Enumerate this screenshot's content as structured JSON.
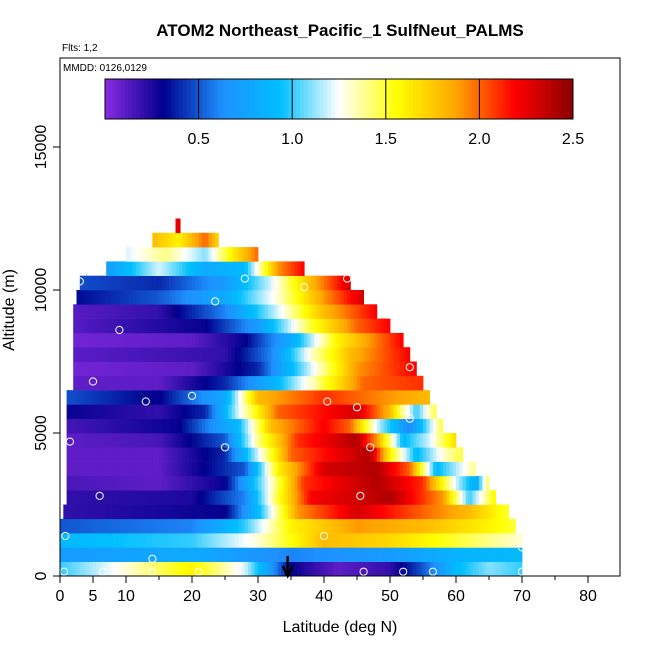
{
  "chart_data": {
    "type": "heatmap",
    "title": "ATOM2 Northeast_Pacific_1 SulfNeut_PALMS",
    "annotations": {
      "flights": "Flts: 1,2",
      "dates": "MMDD: 0126,0129"
    },
    "xlabel": "Latitude (deg N)",
    "ylabel": "Altitude (m)",
    "xlim": [
      0,
      85
    ],
    "ylim": [
      0,
      17500
    ],
    "x_ticks": [
      0,
      5,
      10,
      20,
      30,
      40,
      50,
      60,
      70,
      80
    ],
    "y_ticks": [
      0,
      5000,
      10000,
      15000
    ],
    "colorbar": {
      "range": [
        0,
        2.5
      ],
      "ticks": [
        0.5,
        1.0,
        1.5,
        2.0,
        2.5
      ],
      "tick_labels": [
        "0.5",
        "1.0",
        "1.5",
        "2.0",
        "2.5"
      ],
      "colors": [
        "#8a2be2",
        "#00008b",
        "#1e90ff",
        "#00bfff",
        "#ffffff",
        "#ffff00",
        "#ffa500",
        "#ff0000",
        "#8b0000"
      ]
    },
    "flight_track_arrow_lat": 34.5,
    "layers": [
      {
        "alt": [
          0,
          500
        ],
        "lat": [
          0,
          70
        ],
        "anchors": [
          [
            0,
            1.0
          ],
          [
            10,
            1.3
          ],
          [
            20,
            1.6
          ],
          [
            28,
            1.2
          ],
          [
            35,
            0.3
          ],
          [
            42,
            0.1
          ],
          [
            50,
            0.2
          ],
          [
            55,
            0.5
          ],
          [
            60,
            0.9
          ],
          [
            65,
            1.1
          ],
          [
            70,
            1.0
          ]
        ]
      },
      {
        "alt": [
          500,
          1000
        ],
        "lat": [
          0,
          70
        ],
        "anchors": [
          [
            0,
            0.7
          ],
          [
            20,
            0.8
          ],
          [
            35,
            0.6
          ],
          [
            50,
            0.7
          ],
          [
            60,
            0.85
          ],
          [
            70,
            0.9
          ]
        ]
      },
      {
        "alt": [
          1000,
          1500
        ],
        "lat": [
          0,
          70
        ],
        "anchors": [
          [
            0,
            0.9
          ],
          [
            20,
            1.0
          ],
          [
            30,
            1.3
          ],
          [
            40,
            1.8
          ],
          [
            50,
            1.7
          ],
          [
            60,
            1.5
          ],
          [
            70,
            1.3
          ]
        ]
      },
      {
        "alt": [
          1500,
          2000
        ],
        "lat": [
          0,
          69
        ],
        "anchors": [
          [
            0,
            0.5
          ],
          [
            20,
            0.6
          ],
          [
            28,
            1.0
          ],
          [
            35,
            1.6
          ],
          [
            45,
            1.9
          ],
          [
            55,
            1.8
          ],
          [
            65,
            1.6
          ],
          [
            69,
            1.5
          ]
        ]
      },
      {
        "alt": [
          2000,
          2500
        ],
        "lat": [
          0.5,
          68
        ],
        "anchors": [
          [
            0,
            0.2
          ],
          [
            25,
            0.3
          ],
          [
            30,
            0.9
          ],
          [
            36,
            1.9
          ],
          [
            45,
            2.3
          ],
          [
            55,
            2.0
          ],
          [
            62,
            1.8
          ],
          [
            68,
            1.5
          ]
        ]
      },
      {
        "alt": [
          2500,
          3000
        ],
        "lat": [
          1,
          66
        ],
        "anchors": [
          [
            0,
            0.2
          ],
          [
            20,
            0.25
          ],
          [
            28,
            0.6
          ],
          [
            33,
            1.5
          ],
          [
            38,
            2.2
          ],
          [
            50,
            2.4
          ],
          [
            58,
            1.9
          ],
          [
            62,
            1.0
          ],
          [
            66,
            1.6
          ]
        ]
      },
      {
        "alt": [
          3000,
          3500
        ],
        "lat": [
          1,
          65
        ],
        "anchors": [
          [
            0,
            0.15
          ],
          [
            15,
            0.1
          ],
          [
            25,
            0.3
          ],
          [
            32,
            1.3
          ],
          [
            37,
            2.1
          ],
          [
            48,
            2.4
          ],
          [
            55,
            2.1
          ],
          [
            60,
            1.2
          ],
          [
            63,
            0.8
          ],
          [
            65,
            1.5
          ]
        ]
      },
      {
        "alt": [
          3500,
          4000
        ],
        "lat": [
          1,
          63
        ],
        "anchors": [
          [
            0,
            0.1
          ],
          [
            15,
            0.1
          ],
          [
            28,
            0.5
          ],
          [
            33,
            1.6
          ],
          [
            40,
            2.3
          ],
          [
            48,
            2.4
          ],
          [
            53,
            2.0
          ],
          [
            57,
            0.9
          ],
          [
            63,
            1.4
          ]
        ]
      },
      {
        "alt": [
          4000,
          4500
        ],
        "lat": [
          1,
          61
        ],
        "anchors": [
          [
            0,
            0.1
          ],
          [
            15,
            0.1
          ],
          [
            25,
            0.4
          ],
          [
            30,
            1.2
          ],
          [
            35,
            2.0
          ],
          [
            47,
            2.4
          ],
          [
            50,
            1.6
          ],
          [
            54,
            0.9
          ],
          [
            58,
            1.3
          ],
          [
            61,
            1.5
          ]
        ]
      },
      {
        "alt": [
          4500,
          5000
        ],
        "lat": [
          1,
          60
        ],
        "anchors": [
          [
            0,
            0.1
          ],
          [
            15,
            0.15
          ],
          [
            25,
            0.5
          ],
          [
            30,
            1.4
          ],
          [
            36,
            2.1
          ],
          [
            45,
            2.4
          ],
          [
            48,
            1.9
          ],
          [
            52,
            0.9
          ],
          [
            56,
            1.2
          ],
          [
            60,
            1.7
          ]
        ]
      },
      {
        "alt": [
          5000,
          5500
        ],
        "lat": [
          1,
          58
        ],
        "anchors": [
          [
            0,
            0.15
          ],
          [
            18,
            0.3
          ],
          [
            27,
            0.9
          ],
          [
            32,
            1.8
          ],
          [
            40,
            2.2
          ],
          [
            44,
            2.0
          ],
          [
            48,
            1.2
          ],
          [
            53,
            0.6
          ],
          [
            58,
            1.5
          ]
        ]
      },
      {
        "alt": [
          5500,
          6000
        ],
        "lat": [
          1,
          57
        ],
        "anchors": [
          [
            0,
            0.3
          ],
          [
            15,
            0.2
          ],
          [
            22,
            0.4
          ],
          [
            27,
            1.2
          ],
          [
            33,
            2.0
          ],
          [
            45,
            2.3
          ],
          [
            50,
            1.8
          ],
          [
            54,
            1.0
          ],
          [
            57,
            1.5
          ]
        ]
      },
      {
        "alt": [
          6000,
          6500
        ],
        "lat": [
          1,
          56
        ],
        "anchors": [
          [
            0,
            0.5
          ],
          [
            15,
            0.3
          ],
          [
            25,
            0.8
          ],
          [
            30,
            1.8
          ],
          [
            40,
            2.1
          ],
          [
            50,
            1.9
          ],
          [
            56,
            1.8
          ]
        ]
      },
      {
        "alt": [
          6500,
          7000
        ],
        "lat": [
          2,
          55
        ],
        "anchors": [
          [
            0,
            0.1
          ],
          [
            15,
            0.1
          ],
          [
            25,
            0.4
          ],
          [
            33,
            0.9
          ],
          [
            40,
            1.5
          ],
          [
            46,
            2.0
          ],
          [
            55,
            2.1
          ]
        ]
      },
      {
        "alt": [
          7000,
          7500
        ],
        "lat": [
          2,
          54
        ],
        "anchors": [
          [
            0,
            0.05
          ],
          [
            20,
            0.1
          ],
          [
            30,
            0.4
          ],
          [
            38,
            1.2
          ],
          [
            45,
            1.9
          ],
          [
            54,
            2.2
          ]
        ]
      },
      {
        "alt": [
          7500,
          8000
        ],
        "lat": [
          2,
          53
        ],
        "anchors": [
          [
            0,
            0.1
          ],
          [
            25,
            0.2
          ],
          [
            32,
            0.6
          ],
          [
            38,
            1.3
          ],
          [
            44,
            1.8
          ],
          [
            53,
            2.2
          ]
        ]
      },
      {
        "alt": [
          8000,
          8500
        ],
        "lat": [
          2,
          52
        ],
        "anchors": [
          [
            0,
            0.05
          ],
          [
            20,
            0.1
          ],
          [
            28,
            0.3
          ],
          [
            35,
            0.8
          ],
          [
            42,
            1.6
          ],
          [
            52,
            2.2
          ]
        ]
      },
      {
        "alt": [
          8500,
          9000
        ],
        "lat": [
          2,
          50
        ],
        "anchors": [
          [
            0,
            0.1
          ],
          [
            22,
            0.3
          ],
          [
            30,
            0.7
          ],
          [
            38,
            1.5
          ],
          [
            45,
            2.0
          ],
          [
            50,
            2.2
          ]
        ]
      },
      {
        "alt": [
          9000,
          9500
        ],
        "lat": [
          2,
          48
        ],
        "anchors": [
          [
            0,
            0.1
          ],
          [
            15,
            0.2
          ],
          [
            25,
            0.6
          ],
          [
            33,
            1.2
          ],
          [
            40,
            1.8
          ],
          [
            48,
            2.2
          ]
        ]
      },
      {
        "alt": [
          9500,
          10000
        ],
        "lat": [
          2.5,
          46
        ],
        "anchors": [
          [
            0,
            0.3
          ],
          [
            15,
            0.5
          ],
          [
            25,
            0.8
          ],
          [
            33,
            1.3
          ],
          [
            40,
            1.9
          ],
          [
            46,
            2.3
          ]
        ]
      },
      {
        "alt": [
          10000,
          10500
        ],
        "lat": [
          3,
          44
        ],
        "anchors": [
          [
            0,
            0.5
          ],
          [
            15,
            0.4
          ],
          [
            25,
            0.7
          ],
          [
            32,
            1.2
          ],
          [
            38,
            1.8
          ],
          [
            44,
            2.3
          ]
        ]
      },
      {
        "alt": [
          10500,
          11000
        ],
        "lat": [
          7,
          37
        ],
        "anchors": [
          [
            7,
            0.7
          ],
          [
            15,
            1.2
          ],
          [
            22,
            0.8
          ],
          [
            28,
            0.9
          ],
          [
            33,
            1.9
          ],
          [
            37,
            2.2
          ]
        ]
      },
      {
        "alt": [
          11000,
          11500
        ],
        "lat": [
          10,
          30
        ],
        "anchors": [
          [
            10,
            1.2
          ],
          [
            16,
            1.4
          ],
          [
            22,
            1.1
          ],
          [
            26,
            1.6
          ],
          [
            30,
            2.0
          ]
        ]
      },
      {
        "alt": [
          11500,
          12000
        ],
        "lat": [
          14,
          24
        ],
        "anchors": [
          [
            14,
            1.8
          ],
          [
            18,
            1.6
          ],
          [
            22,
            2.0
          ],
          [
            24,
            1.7
          ]
        ]
      },
      {
        "alt": [
          12000,
          12500
        ],
        "lat": [
          17.5,
          18.2
        ],
        "anchors": [
          [
            17.5,
            2.2
          ],
          [
            18.2,
            2.3
          ]
        ]
      }
    ],
    "sample_points": [
      [
        0.6,
        150
      ],
      [
        6.5,
        150
      ],
      [
        14,
        150
      ],
      [
        21,
        150
      ],
      [
        46,
        150
      ],
      [
        52,
        150
      ],
      [
        56.5,
        150
      ],
      [
        70,
        150
      ],
      [
        14,
        600
      ],
      [
        70,
        1000
      ],
      [
        0.8,
        1400
      ],
      [
        40,
        1400
      ],
      [
        6,
        2800
      ],
      [
        45.5,
        2800
      ],
      [
        25,
        4500
      ],
      [
        47,
        4500
      ],
      [
        1.5,
        4700
      ],
      [
        53,
        5500
      ],
      [
        52,
        5800
      ],
      [
        45,
        5900
      ],
      [
        13,
        6100
      ],
      [
        40.5,
        6100
      ],
      [
        20,
        6300
      ],
      [
        5,
        6800
      ],
      [
        38.5,
        6700
      ],
      [
        53,
        7300
      ],
      [
        9,
        8600
      ],
      [
        49,
        9200
      ],
      [
        23.5,
        9600
      ],
      [
        3,
        10300
      ],
      [
        37,
        10100
      ],
      [
        28,
        10400
      ],
      [
        43.5,
        10400
      ]
    ]
  }
}
